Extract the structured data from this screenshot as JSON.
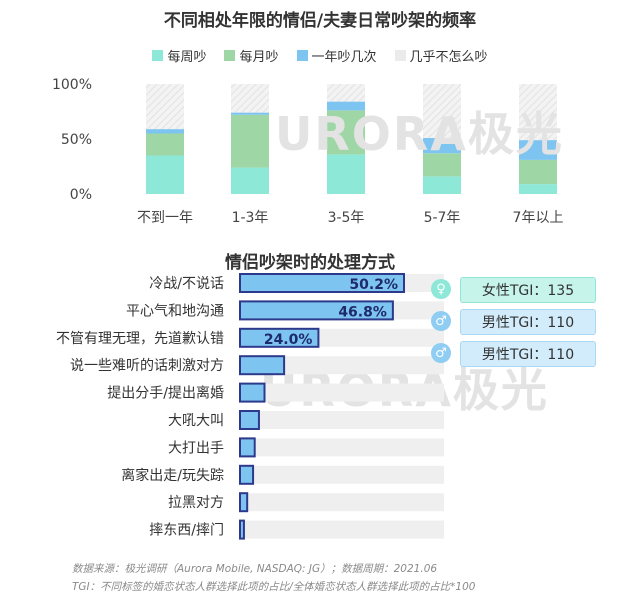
{
  "chart_data": [
    {
      "type": "bar",
      "stacked": true,
      "title": "不同相处年限的情侣/夫妻日常吵架的频率",
      "categories": [
        "不到一年",
        "1-3年",
        "3-5年",
        "5-7年",
        "7年以上"
      ],
      "series": [
        {
          "name": "每周吵",
          "color": "#8ee8d8",
          "values": [
            35,
            24,
            36,
            16,
            9
          ]
        },
        {
          "name": "每月吵",
          "color": "#9ed6a6",
          "values": [
            20,
            48,
            40,
            21,
            22
          ]
        },
        {
          "name": "一年吵几次",
          "color": "#7ec4f0",
          "values": [
            4,
            2,
            8,
            14,
            18
          ]
        },
        {
          "name": "几乎不怎么吵",
          "color": "#ebebeb",
          "values": [
            41,
            26,
            16,
            49,
            51
          ]
        }
      ],
      "yticks": [
        "100%",
        "50%",
        "0%"
      ],
      "ylim": [
        0,
        100
      ],
      "grid": false,
      "legend": "top"
    },
    {
      "type": "bar",
      "orientation": "horizontal",
      "title": "情侣吵架时的处理方式",
      "categories": [
        "冷战/不说话",
        "平心气和地沟通",
        "不管有理无理，先道歉认错",
        "说一些难听的话刺激对方",
        "提出分手/提出离婚",
        "大吼大叫",
        "大打出手",
        "离家出走/玩失踪",
        "拉黑对方",
        "摔东西/摔门"
      ],
      "values": [
        50.2,
        46.8,
        24.0,
        13.5,
        7.5,
        5.8,
        4.5,
        4.0,
        2.2,
        1.2
      ],
      "value_labels": [
        "50.2%",
        "46.8%",
        "24.0%",
        "",
        "",
        "",
        "",
        "",
        "",
        ""
      ],
      "xlim": [
        0,
        100
      ],
      "bar_color": "#7ec4f0",
      "track_color": "#efefef"
    }
  ],
  "tgi": [
    {
      "icon": "female-icon",
      "label": "女性TGI：135",
      "color": "#8ee8d8"
    },
    {
      "icon": "male-icon",
      "label": "男性TGI：110",
      "color": "#a8d8f5"
    },
    {
      "icon": "male-icon",
      "label": "男性TGI：110",
      "color": "#a8d8f5"
    }
  ],
  "watermark": "URORA极光",
  "footer": {
    "source": "数据来源：极光调研（Aurora Mobile, NASDAQ: JG）；数据周期：2021.06",
    "note": "TGI：不同标签的婚恋状态人群选择此项的占比/全体婚恋状态人群选择此项的占比*100"
  }
}
